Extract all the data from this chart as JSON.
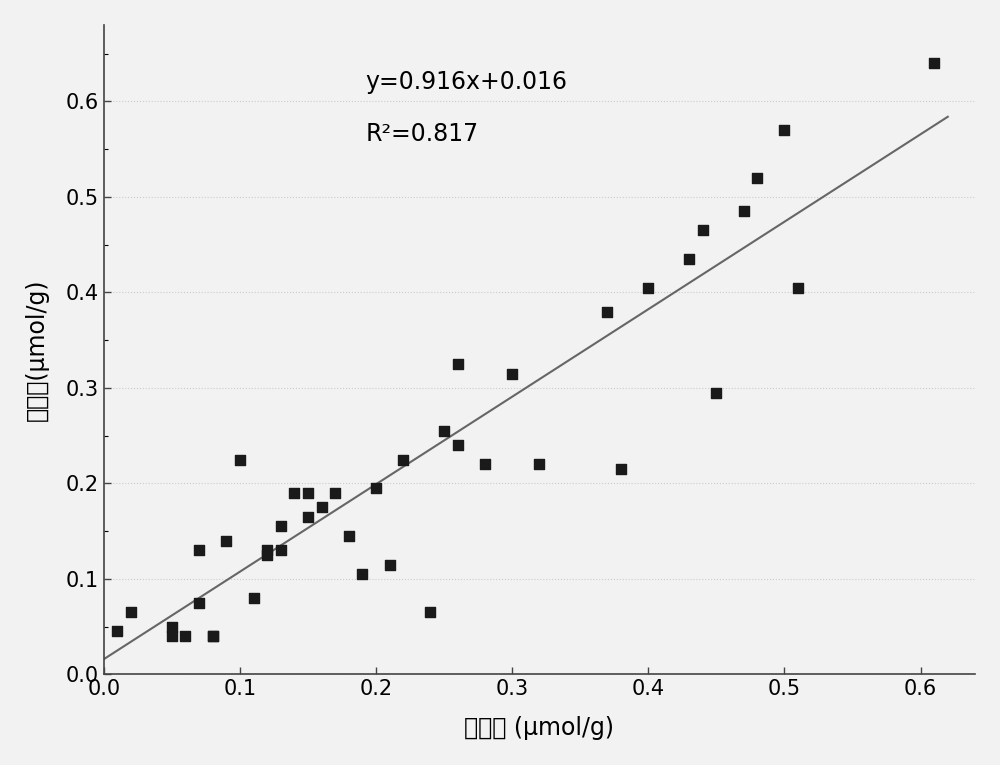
{
  "scatter_x": [
    0.01,
    0.02,
    0.05,
    0.05,
    0.06,
    0.07,
    0.07,
    0.08,
    0.08,
    0.09,
    0.1,
    0.11,
    0.12,
    0.12,
    0.13,
    0.13,
    0.14,
    0.15,
    0.15,
    0.16,
    0.17,
    0.18,
    0.19,
    0.2,
    0.21,
    0.22,
    0.24,
    0.25,
    0.26,
    0.26,
    0.28,
    0.3,
    0.32,
    0.37,
    0.38,
    0.4,
    0.43,
    0.44,
    0.45,
    0.47,
    0.48,
    0.5,
    0.51,
    0.61
  ],
  "scatter_y": [
    0.045,
    0.065,
    0.05,
    0.04,
    0.04,
    0.075,
    0.13,
    0.04,
    0.04,
    0.14,
    0.225,
    0.08,
    0.13,
    0.125,
    0.13,
    0.155,
    0.19,
    0.165,
    0.19,
    0.175,
    0.19,
    0.145,
    0.105,
    0.195,
    0.115,
    0.225,
    0.065,
    0.255,
    0.325,
    0.24,
    0.22,
    0.315,
    0.22,
    0.38,
    0.215,
    0.405,
    0.435,
    0.465,
    0.295,
    0.485,
    0.52,
    0.57,
    0.405,
    0.64
  ],
  "line_x": [
    0.0,
    0.62
  ],
  "line_slope": 0.916,
  "line_intercept": 0.016,
  "equation_text": "y=0.916x+0.016",
  "r2_text": "R²=0.817",
  "xlabel": "预测値 (μmol/g)",
  "ylabel": "实测値(μmol/g)",
  "xlim": [
    0.0,
    0.64
  ],
  "ylim": [
    0.0,
    0.68
  ],
  "xticks": [
    0.0,
    0.1,
    0.2,
    0.3,
    0.4,
    0.5,
    0.6
  ],
  "yticks": [
    0.0,
    0.1,
    0.2,
    0.3,
    0.4,
    0.5,
    0.6
  ],
  "marker_color": "#1a1a1a",
  "line_color": "#666666",
  "background_color": "#f2f2f2",
  "plot_bg_color": "#f2f2f2",
  "grid_color": "#cccccc",
  "annotation_fontsize": 17,
  "axis_label_fontsize": 17,
  "tick_fontsize": 15,
  "marker_size": 55
}
